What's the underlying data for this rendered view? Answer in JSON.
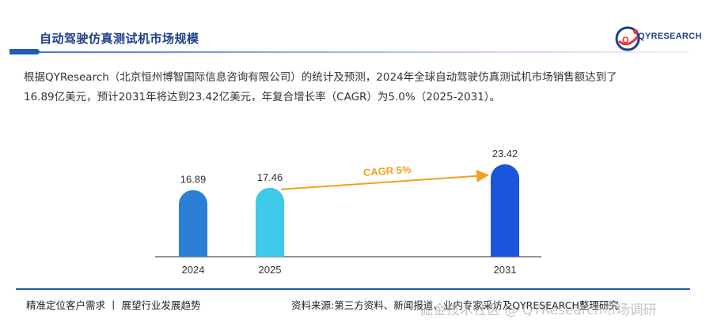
{
  "header": {
    "title": "自动驾驶仿真测试机市场规模",
    "logo_text": "QYRESEARCH"
  },
  "description": {
    "line1": "根据QYResearch（北京恒州博智国际信息咨询有限公司）的统计及预测，2024年全球自动驾驶仿真测试机市场销售额达到了",
    "line2": "16.89亿美元，预计2031年将达到23.42亿美元，年复合增长率（CAGR）为5.0%（2025-2031）。"
  },
  "chart_data": {
    "type": "bar",
    "categories": [
      "2024",
      "2025",
      "2031"
    ],
    "values": [
      16.89,
      17.46,
      23.42
    ],
    "colors": [
      "#2b7fd4",
      "#3ec9ea",
      "#1a56db"
    ],
    "annotation": "CAGR 5%",
    "annotation_color": "#f0a020",
    "title": "",
    "xlabel": "",
    "ylabel": ""
  },
  "footer": {
    "left": "精准定位客户需求 丨 展望行业发展趋势",
    "right": "资料来源:第三方资料、新闻报道、业内专家采访及QYRESEARCH整理研究",
    "watermark": "掘金技术社区 @ QYResearch市场调研"
  },
  "colors": {
    "primary": "#1e3f8a",
    "accent": "#1f5db8"
  }
}
